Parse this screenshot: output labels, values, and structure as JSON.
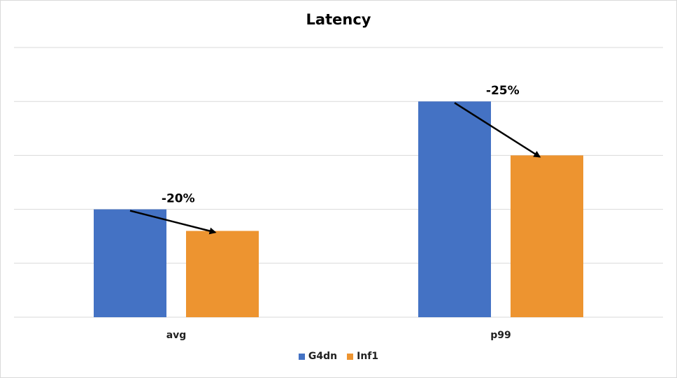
{
  "chart_data": {
    "type": "bar",
    "title": "Latency",
    "categories": [
      "avg",
      "p99"
    ],
    "series": [
      {
        "name": "G4dn",
        "color": "#4472c4",
        "values": [
          20,
          40
        ]
      },
      {
        "name": "Inf1",
        "color": "#ed9430",
        "values": [
          16,
          30
        ]
      }
    ],
    "ylim": [
      0,
      50
    ],
    "y_gridlines": [
      0,
      10,
      20,
      30,
      40,
      50
    ],
    "y_tick_labels_shown": false,
    "grid": true,
    "legend_position": "bottom",
    "annotations": [
      {
        "category": "avg",
        "text": "-20%",
        "arrow": "from G4dn bar top to Inf1 bar top"
      },
      {
        "category": "p99",
        "text": "-25%",
        "arrow": "from G4dn bar top to Inf1 bar top"
      }
    ]
  }
}
